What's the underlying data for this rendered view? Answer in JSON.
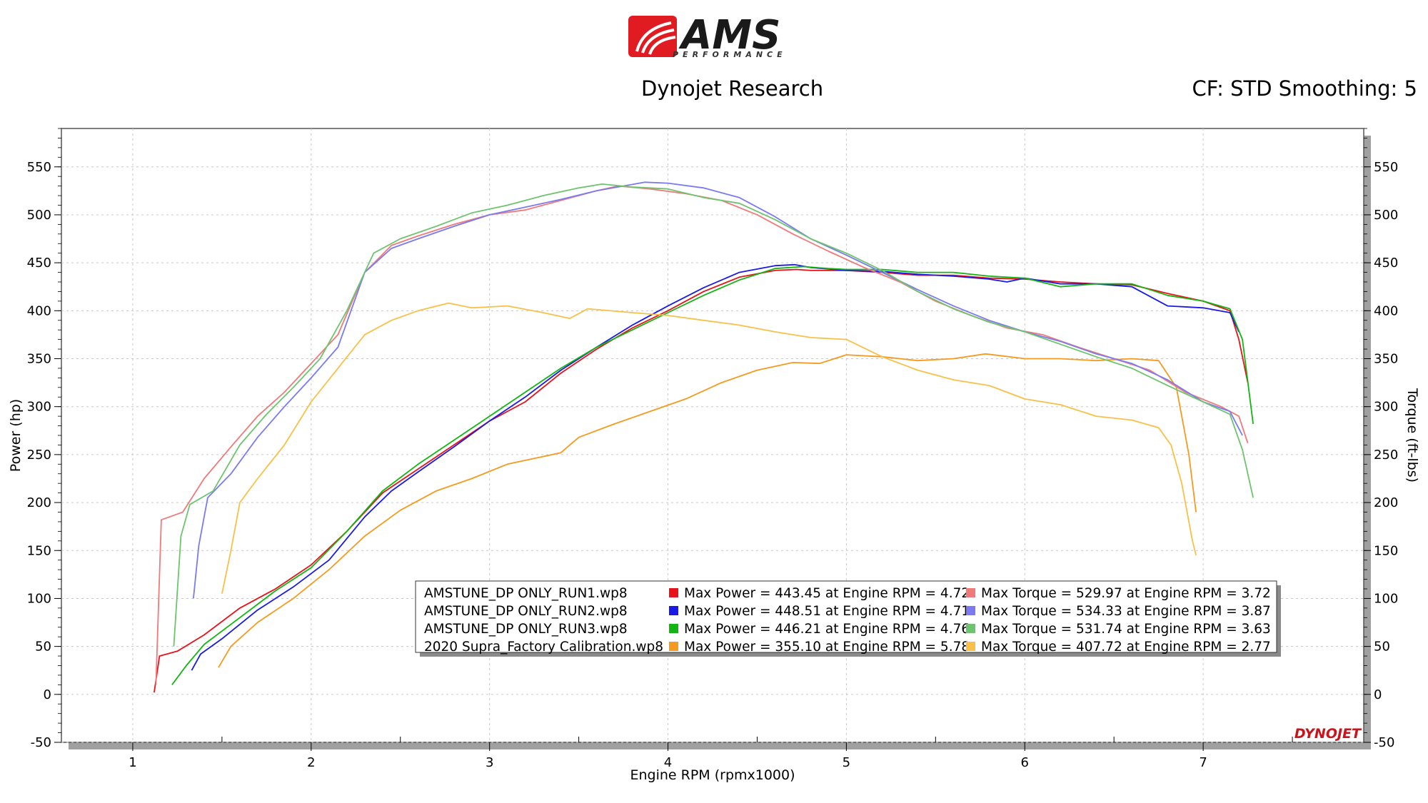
{
  "header": {
    "logo_text": "AMS",
    "logo_subtext": "PERFORMANCE",
    "title": "Dynojet Research",
    "settings": "CF: STD Smoothing: 5",
    "brand_mark": "DYNOJET"
  },
  "colors": {
    "run1_power": "#e8121a",
    "run2_power": "#1a1ae6",
    "run3_power": "#12b512",
    "factory_power": "#f59a1e",
    "run1_torque": "#f07a7a",
    "run2_torque": "#7a7af2",
    "run3_torque": "#6ec46e",
    "factory_torque": "#f8c048",
    "logo_red": "#e01b22"
  },
  "chart_data": {
    "type": "line",
    "xlabel": "Engine RPM (rpmx1000)",
    "ylabel": "Power (hp)",
    "y2label": "Torque (ft-lbs)",
    "xlim": [
      0.6,
      7.9
    ],
    "ylim": [
      -50,
      590
    ],
    "y2lim": [
      -50,
      590
    ],
    "x_ticks": [
      "1",
      "2",
      "3",
      "4",
      "5",
      "6",
      "7"
    ],
    "y_ticks": [
      "550",
      "500",
      "450",
      "400",
      "350",
      "300",
      "250",
      "200",
      "150",
      "100",
      "50",
      "0",
      "-50"
    ],
    "y2_ticks": [
      "550",
      "500",
      "450",
      "400",
      "350",
      "300",
      "250",
      "200",
      "150",
      "100",
      "50",
      "0",
      "-50"
    ],
    "grid": true,
    "legend_position": "bottom-center",
    "legend": [
      {
        "file": "AMSTUNE_DP ONLY_RUN1.wp8",
        "max_power": "Max Power = 443.45 at Engine RPM = 4.72",
        "max_torque": "Max Torque = 529.97 at Engine RPM = 3.72"
      },
      {
        "file": "AMSTUNE_DP ONLY_RUN2.wp8",
        "max_power": "Max Power = 448.51 at Engine RPM = 4.71",
        "max_torque": "Max Torque = 534.33 at Engine RPM = 3.87"
      },
      {
        "file": "AMSTUNE_DP ONLY_RUN3.wp8",
        "max_power": "Max Power = 446.21 at Engine RPM = 4.76",
        "max_torque": "Max Torque = 531.74 at Engine RPM = 3.63"
      },
      {
        "file": "2020 Supra_Factory Calibration.wp8",
        "max_power": "Max Power = 355.10 at Engine RPM = 5.78",
        "max_torque": "Max Torque = 407.72 at Engine RPM = 2.77"
      }
    ],
    "series": [
      {
        "name": "AMSTUNE_DP ONLY_RUN1.wp8",
        "kind": "power",
        "color_key": "run1_power",
        "points": [
          [
            1.12,
            2
          ],
          [
            1.15,
            40
          ],
          [
            1.25,
            45
          ],
          [
            1.4,
            62
          ],
          [
            1.6,
            90
          ],
          [
            1.8,
            110
          ],
          [
            2.0,
            135
          ],
          [
            2.2,
            170
          ],
          [
            2.4,
            210
          ],
          [
            2.6,
            235
          ],
          [
            2.8,
            260
          ],
          [
            3.0,
            285
          ],
          [
            3.2,
            305
          ],
          [
            3.4,
            335
          ],
          [
            3.6,
            360
          ],
          [
            3.8,
            382
          ],
          [
            4.0,
            400
          ],
          [
            4.2,
            420
          ],
          [
            4.4,
            435
          ],
          [
            4.6,
            442
          ],
          [
            4.72,
            443
          ],
          [
            4.8,
            442
          ],
          [
            5.0,
            442
          ],
          [
            5.2,
            440
          ],
          [
            5.4,
            437
          ],
          [
            5.6,
            437
          ],
          [
            5.8,
            434
          ],
          [
            6.0,
            433
          ],
          [
            6.2,
            430
          ],
          [
            6.4,
            428
          ],
          [
            6.6,
            427
          ],
          [
            6.8,
            418
          ],
          [
            7.0,
            410
          ],
          [
            7.15,
            400
          ],
          [
            7.2,
            370
          ],
          [
            7.25,
            325
          ]
        ]
      },
      {
        "name": "AMSTUNE_DP ONLY_RUN2.wp8",
        "kind": "power",
        "color_key": "run2_power",
        "points": [
          [
            1.33,
            25
          ],
          [
            1.38,
            42
          ],
          [
            1.5,
            58
          ],
          [
            1.7,
            88
          ],
          [
            1.9,
            112
          ],
          [
            2.1,
            140
          ],
          [
            2.3,
            185
          ],
          [
            2.45,
            212
          ],
          [
            2.6,
            232
          ],
          [
            2.8,
            258
          ],
          [
            3.0,
            285
          ],
          [
            3.2,
            310
          ],
          [
            3.4,
            338
          ],
          [
            3.6,
            362
          ],
          [
            3.8,
            385
          ],
          [
            4.0,
            405
          ],
          [
            4.2,
            424
          ],
          [
            4.4,
            440
          ],
          [
            4.6,
            447
          ],
          [
            4.71,
            448
          ],
          [
            4.8,
            445
          ],
          [
            5.0,
            442
          ],
          [
            5.2,
            441
          ],
          [
            5.4,
            438
          ],
          [
            5.6,
            436
          ],
          [
            5.8,
            433
          ],
          [
            5.9,
            430
          ],
          [
            6.0,
            434
          ],
          [
            6.2,
            428
          ],
          [
            6.4,
            428
          ],
          [
            6.6,
            425
          ],
          [
            6.8,
            405
          ],
          [
            7.0,
            403
          ],
          [
            7.15,
            398
          ],
          [
            7.2,
            378
          ]
        ]
      },
      {
        "name": "AMSTUNE_DP ONLY_RUN3.wp8",
        "kind": "power",
        "color_key": "run3_power",
        "points": [
          [
            1.22,
            10
          ],
          [
            1.3,
            30
          ],
          [
            1.4,
            52
          ],
          [
            1.6,
            80
          ],
          [
            1.8,
            108
          ],
          [
            2.0,
            132
          ],
          [
            2.2,
            170
          ],
          [
            2.4,
            212
          ],
          [
            2.6,
            240
          ],
          [
            2.8,
            265
          ],
          [
            3.0,
            290
          ],
          [
            3.2,
            315
          ],
          [
            3.4,
            340
          ],
          [
            3.6,
            362
          ],
          [
            3.8,
            380
          ],
          [
            4.0,
            398
          ],
          [
            4.2,
            416
          ],
          [
            4.4,
            432
          ],
          [
            4.6,
            444
          ],
          [
            4.76,
            446
          ],
          [
            4.9,
            444
          ],
          [
            5.0,
            443
          ],
          [
            5.2,
            443
          ],
          [
            5.4,
            440
          ],
          [
            5.6,
            440
          ],
          [
            5.8,
            436
          ],
          [
            6.0,
            434
          ],
          [
            6.2,
            425
          ],
          [
            6.4,
            428
          ],
          [
            6.6,
            428
          ],
          [
            6.8,
            416
          ],
          [
            7.0,
            410
          ],
          [
            7.15,
            402
          ],
          [
            7.22,
            370
          ],
          [
            7.28,
            282
          ]
        ]
      },
      {
        "name": "2020 Supra_Factory Calibration.wp8",
        "kind": "power",
        "color_key": "factory_power",
        "points": [
          [
            1.48,
            28
          ],
          [
            1.55,
            50
          ],
          [
            1.7,
            75
          ],
          [
            1.9,
            100
          ],
          [
            2.1,
            130
          ],
          [
            2.3,
            165
          ],
          [
            2.5,
            192
          ],
          [
            2.7,
            212
          ],
          [
            2.9,
            225
          ],
          [
            3.1,
            240
          ],
          [
            3.3,
            248
          ],
          [
            3.4,
            252
          ],
          [
            3.5,
            268
          ],
          [
            3.7,
            282
          ],
          [
            3.9,
            295
          ],
          [
            4.1,
            308
          ],
          [
            4.3,
            325
          ],
          [
            4.5,
            338
          ],
          [
            4.7,
            346
          ],
          [
            4.85,
            345
          ],
          [
            5.0,
            354
          ],
          [
            5.2,
            352
          ],
          [
            5.4,
            348
          ],
          [
            5.6,
            350
          ],
          [
            5.78,
            355
          ],
          [
            6.0,
            350
          ],
          [
            6.2,
            350
          ],
          [
            6.4,
            348
          ],
          [
            6.6,
            350
          ],
          [
            6.75,
            348
          ],
          [
            6.85,
            320
          ],
          [
            6.92,
            250
          ],
          [
            6.96,
            190
          ]
        ]
      },
      {
        "name": "AMSTUNE_DP ONLY_RUN1.wp8",
        "kind": "torque",
        "color_key": "run1_torque",
        "points": [
          [
            1.13,
            10
          ],
          [
            1.16,
            182
          ],
          [
            1.28,
            190
          ],
          [
            1.4,
            225
          ],
          [
            1.55,
            258
          ],
          [
            1.7,
            290
          ],
          [
            1.85,
            315
          ],
          [
            2.0,
            345
          ],
          [
            2.15,
            375
          ],
          [
            2.3,
            440
          ],
          [
            2.45,
            468
          ],
          [
            2.6,
            478
          ],
          [
            2.8,
            490
          ],
          [
            3.0,
            500
          ],
          [
            3.2,
            505
          ],
          [
            3.4,
            515
          ],
          [
            3.6,
            525
          ],
          [
            3.72,
            530
          ],
          [
            3.9,
            527
          ],
          [
            4.1,
            522
          ],
          [
            4.3,
            515
          ],
          [
            4.5,
            500
          ],
          [
            4.7,
            480
          ],
          [
            4.9,
            462
          ],
          [
            5.1,
            445
          ],
          [
            5.3,
            430
          ],
          [
            5.5,
            410
          ],
          [
            5.7,
            395
          ],
          [
            5.9,
            382
          ],
          [
            6.1,
            375
          ],
          [
            6.3,
            362
          ],
          [
            6.5,
            350
          ],
          [
            6.7,
            338
          ],
          [
            6.9,
            315
          ],
          [
            7.1,
            300
          ],
          [
            7.2,
            290
          ],
          [
            7.25,
            262
          ]
        ]
      },
      {
        "name": "AMSTUNE_DP ONLY_RUN2.wp8",
        "kind": "torque",
        "color_key": "run2_torque",
        "points": [
          [
            1.34,
            100
          ],
          [
            1.37,
            155
          ],
          [
            1.42,
            205
          ],
          [
            1.55,
            230
          ],
          [
            1.7,
            268
          ],
          [
            1.85,
            300
          ],
          [
            2.0,
            330
          ],
          [
            2.15,
            362
          ],
          [
            2.3,
            440
          ],
          [
            2.45,
            465
          ],
          [
            2.6,
            475
          ],
          [
            2.8,
            488
          ],
          [
            3.0,
            500
          ],
          [
            3.2,
            508
          ],
          [
            3.4,
            516
          ],
          [
            3.6,
            525
          ],
          [
            3.87,
            534
          ],
          [
            4.0,
            533
          ],
          [
            4.2,
            528
          ],
          [
            4.4,
            518
          ],
          [
            4.6,
            498
          ],
          [
            4.8,
            475
          ],
          [
            5.0,
            458
          ],
          [
            5.2,
            440
          ],
          [
            5.4,
            422
          ],
          [
            5.6,
            405
          ],
          [
            5.8,
            390
          ],
          [
            6.0,
            378
          ],
          [
            6.2,
            368
          ],
          [
            6.4,
            355
          ],
          [
            6.6,
            345
          ],
          [
            6.8,
            328
          ],
          [
            7.0,
            305
          ],
          [
            7.15,
            295
          ],
          [
            7.22,
            270
          ]
        ]
      },
      {
        "name": "AMSTUNE_DP ONLY_RUN3.wp8",
        "kind": "torque",
        "color_key": "run3_torque",
        "points": [
          [
            1.23,
            50
          ],
          [
            1.27,
            165
          ],
          [
            1.32,
            198
          ],
          [
            1.45,
            212
          ],
          [
            1.6,
            260
          ],
          [
            1.75,
            292
          ],
          [
            1.9,
            320
          ],
          [
            2.05,
            350
          ],
          [
            2.2,
            400
          ],
          [
            2.35,
            460
          ],
          [
            2.5,
            475
          ],
          [
            2.7,
            488
          ],
          [
            2.9,
            502
          ],
          [
            3.1,
            510
          ],
          [
            3.3,
            520
          ],
          [
            3.5,
            528
          ],
          [
            3.63,
            532
          ],
          [
            3.8,
            529
          ],
          [
            4.0,
            527
          ],
          [
            4.2,
            518
          ],
          [
            4.4,
            512
          ],
          [
            4.6,
            495
          ],
          [
            4.8,
            475
          ],
          [
            5.0,
            460
          ],
          [
            5.2,
            442
          ],
          [
            5.4,
            420
          ],
          [
            5.6,
            402
          ],
          [
            5.8,
            388
          ],
          [
            6.0,
            378
          ],
          [
            6.2,
            365
          ],
          [
            6.4,
            352
          ],
          [
            6.6,
            340
          ],
          [
            6.8,
            322
          ],
          [
            7.0,
            305
          ],
          [
            7.15,
            292
          ],
          [
            7.22,
            255
          ],
          [
            7.28,
            205
          ]
        ]
      },
      {
        "name": "2020 Supra_Factory Calibration.wp8",
        "kind": "torque",
        "color_key": "factory_torque",
        "points": [
          [
            1.5,
            105
          ],
          [
            1.55,
            150
          ],
          [
            1.6,
            200
          ],
          [
            1.7,
            225
          ],
          [
            1.85,
            260
          ],
          [
            2.0,
            305
          ],
          [
            2.15,
            340
          ],
          [
            2.3,
            375
          ],
          [
            2.45,
            390
          ],
          [
            2.6,
            400
          ],
          [
            2.77,
            408
          ],
          [
            2.9,
            403
          ],
          [
            3.1,
            405
          ],
          [
            3.3,
            398
          ],
          [
            3.45,
            392
          ],
          [
            3.55,
            402
          ],
          [
            3.8,
            398
          ],
          [
            4.0,
            395
          ],
          [
            4.2,
            390
          ],
          [
            4.4,
            385
          ],
          [
            4.6,
            378
          ],
          [
            4.8,
            372
          ],
          [
            5.0,
            370
          ],
          [
            5.2,
            352
          ],
          [
            5.4,
            338
          ],
          [
            5.6,
            328
          ],
          [
            5.8,
            322
          ],
          [
            6.0,
            308
          ],
          [
            6.2,
            302
          ],
          [
            6.4,
            290
          ],
          [
            6.6,
            286
          ],
          [
            6.75,
            278
          ],
          [
            6.82,
            260
          ],
          [
            6.88,
            220
          ],
          [
            6.94,
            160
          ],
          [
            6.96,
            145
          ]
        ]
      }
    ]
  }
}
